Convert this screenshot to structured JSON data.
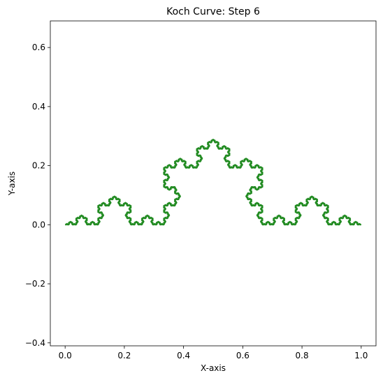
{
  "chart_data": {
    "type": "line",
    "title": "Koch Curve: Step 6",
    "xlabel": "X-axis",
    "ylabel": "Y-axis",
    "xlim": [
      -0.05,
      1.05
    ],
    "ylim": [
      -0.41,
      0.69
    ],
    "x_ticks": [
      0.0,
      0.2,
      0.4,
      0.6,
      0.8,
      1.0
    ],
    "x_tick_labels": [
      "0.0",
      "0.2",
      "0.4",
      "0.6",
      "0.8",
      "1.0"
    ],
    "y_ticks": [
      -0.4,
      -0.2,
      0.0,
      0.2,
      0.4,
      0.6
    ],
    "y_tick_labels": [
      "−0.4",
      "−0.2",
      "0.0",
      "0.2",
      "0.4",
      "0.6"
    ],
    "grid": false,
    "series": [
      {
        "kind": "koch-curve",
        "iterations": 6,
        "start": [
          0.0,
          0.0
        ],
        "end": [
          1.0,
          0.0
        ],
        "color": "#228b22"
      }
    ]
  }
}
